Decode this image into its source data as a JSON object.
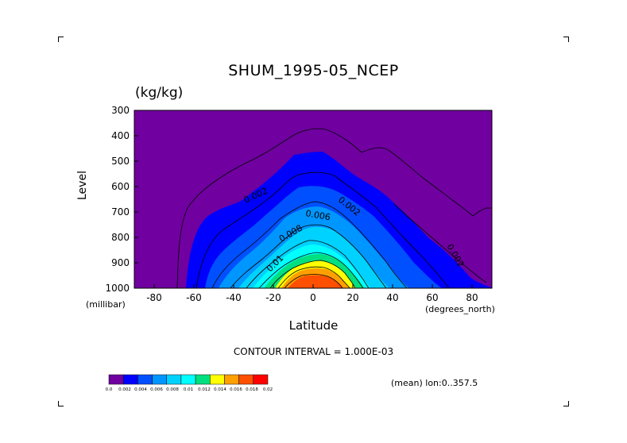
{
  "title": "SHUM_1995-05_NCEP",
  "units": "(kg/kg)",
  "contour_interval": "CONTOUR INTERVAL = 1.000E-03",
  "mean_label": "(mean) lon:0..357.5",
  "chart_data": {
    "type": "heatmap",
    "title": "SHUM_1995-05_NCEP",
    "units": "(kg/kg)",
    "xlabel": "Latitude",
    "xunits": "(degrees_north)",
    "ylabel": "Level",
    "yunits": "(millibar)",
    "xlim": [
      -90,
      90
    ],
    "ylim": [
      1000,
      300
    ],
    "x_ticks": [
      -80,
      -60,
      -40,
      -20,
      0,
      20,
      40,
      60,
      80
    ],
    "y_ticks": [
      300,
      400,
      500,
      600,
      700,
      800,
      900,
      1000
    ],
    "x_tick_labels": [
      "-80",
      "-60",
      "-40",
      "-20",
      "0",
      "20",
      "40",
      "60",
      "80"
    ],
    "y_tick_labels": [
      "300",
      "400",
      "500",
      "600",
      "700",
      "800",
      "900",
      "1000"
    ],
    "contour_levels": [
      0.001,
      0.002,
      0.003,
      0.004,
      0.005,
      0.006,
      0.007,
      0.008,
      0.009,
      0.01,
      0.011,
      0.012,
      0.013,
      0.014,
      0.015,
      0.016,
      0.017
    ],
    "contour_labels": [
      "0.002",
      "0.004",
      "0.006",
      "0.008",
      "0.01",
      "0.002",
      "0.002"
    ],
    "colorbar": {
      "colors": [
        "#7000a0",
        "#0000ff",
        "#0050ff",
        "#0096ff",
        "#00d2ff",
        "#00ffff",
        "#00e080",
        "#00c000",
        "#ffff00",
        "#ffa000",
        "#ff5000",
        "#ff0000"
      ],
      "labels": [
        "0.0",
        "0.002",
        "0.004",
        "0.006",
        "0.008",
        "0.01",
        "0.012",
        "0.014",
        "0.016",
        "0.018",
        "0.02"
      ]
    }
  }
}
